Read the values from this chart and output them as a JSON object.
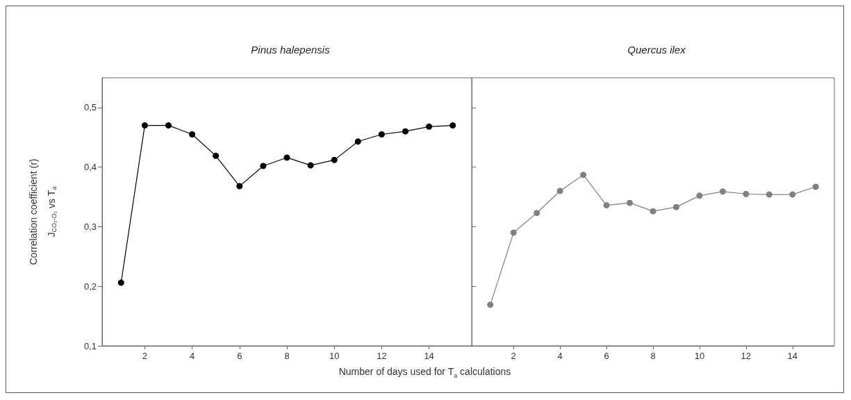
{
  "chart_data": [
    {
      "type": "line",
      "title": "Pinus halepensis",
      "ylabel": "Correlation coefficient (r)\nJ$_{CO₂-O₂}$ vs T$_{a}$",
      "xlabel": "Number of days used for T$_{a}$ calculations",
      "x": [
        1,
        2,
        3,
        4,
        5,
        6,
        7,
        8,
        9,
        10,
        11,
        12,
        13,
        14,
        15
      ],
      "series": [
        {
          "color": "#000000",
          "values": [
            0.206,
            0.47,
            0.47,
            0.455,
            0.419,
            0.368,
            0.402,
            0.416,
            0.403,
            0.412,
            0.443,
            0.455,
            0.46,
            0.468,
            0.47
          ]
        }
      ],
      "xlim": [
        0.2,
        15.8
      ],
      "xticks": [
        2,
        4,
        6,
        8,
        10,
        12,
        14
      ],
      "ylim": [
        0.1,
        0.55
      ],
      "yticks": [
        {
          "value": 0.1,
          "label": "0,1"
        },
        {
          "value": 0.2,
          "label": "0,2"
        },
        {
          "value": 0.3,
          "label": "0,3"
        },
        {
          "value": 0.4,
          "label": "0,4"
        },
        {
          "value": 0.5,
          "label": "0,5"
        }
      ],
      "marker": "circle",
      "line_style": "solid",
      "grid": false
    },
    {
      "type": "line",
      "title": "Quercus ilex",
      "x": [
        1,
        2,
        3,
        4,
        5,
        6,
        7,
        8,
        9,
        10,
        11,
        12,
        13,
        14,
        15
      ],
      "series": [
        {
          "color": "#808080",
          "values": [
            0.169,
            0.29,
            0.323,
            0.36,
            0.387,
            0.336,
            0.34,
            0.326,
            0.333,
            0.352,
            0.359,
            0.355,
            0.354,
            0.354,
            0.367
          ]
        }
      ],
      "xlim": [
        0.2,
        15.8
      ],
      "xticks": [
        2,
        4,
        6,
        8,
        10,
        12,
        14
      ],
      "ylim": [
        0.1,
        0.55
      ],
      "yticks": [
        0.1,
        0.2,
        0.3,
        0.4,
        0.5
      ],
      "tick_labels": "x",
      "marker": "circle",
      "line_style": "solid",
      "grid": false
    }
  ]
}
